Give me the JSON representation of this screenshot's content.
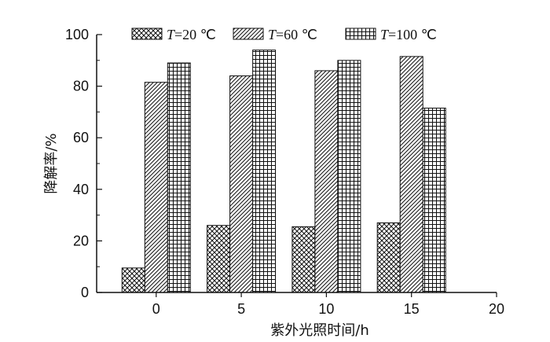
{
  "chart_data": {
    "type": "bar",
    "xlabel": "紫外光照时间/h",
    "ylabel": "降解率/%",
    "x_ticks": [
      "0",
      "5",
      "10",
      "15",
      "20"
    ],
    "y_ticks": [
      "0",
      "20",
      "40",
      "60",
      "80",
      "100"
    ],
    "ylim": [
      0,
      100
    ],
    "xlim": [
      -3.5,
      20
    ],
    "categories": [
      0,
      5,
      10,
      15
    ],
    "series": [
      {
        "name": "T=20 ℃",
        "name_var": "T",
        "name_rest": "=20 ℃",
        "pattern": "crosshatch-diagonal",
        "values": [
          9.5,
          26,
          25.5,
          27
        ]
      },
      {
        "name": "T=60 ℃",
        "name_var": "T",
        "name_rest": "=60 ℃",
        "pattern": "diagonal-lines",
        "values": [
          81.5,
          84,
          86,
          91.5
        ]
      },
      {
        "name": "T=100 ℃",
        "name_var": "T",
        "name_rest": "=100 ℃",
        "pattern": "grid",
        "values": [
          89,
          94,
          90,
          71.5
        ]
      }
    ],
    "legend_position": "top",
    "grid": false,
    "colors": {
      "stroke": "#111111",
      "background": "#ffffff"
    }
  }
}
